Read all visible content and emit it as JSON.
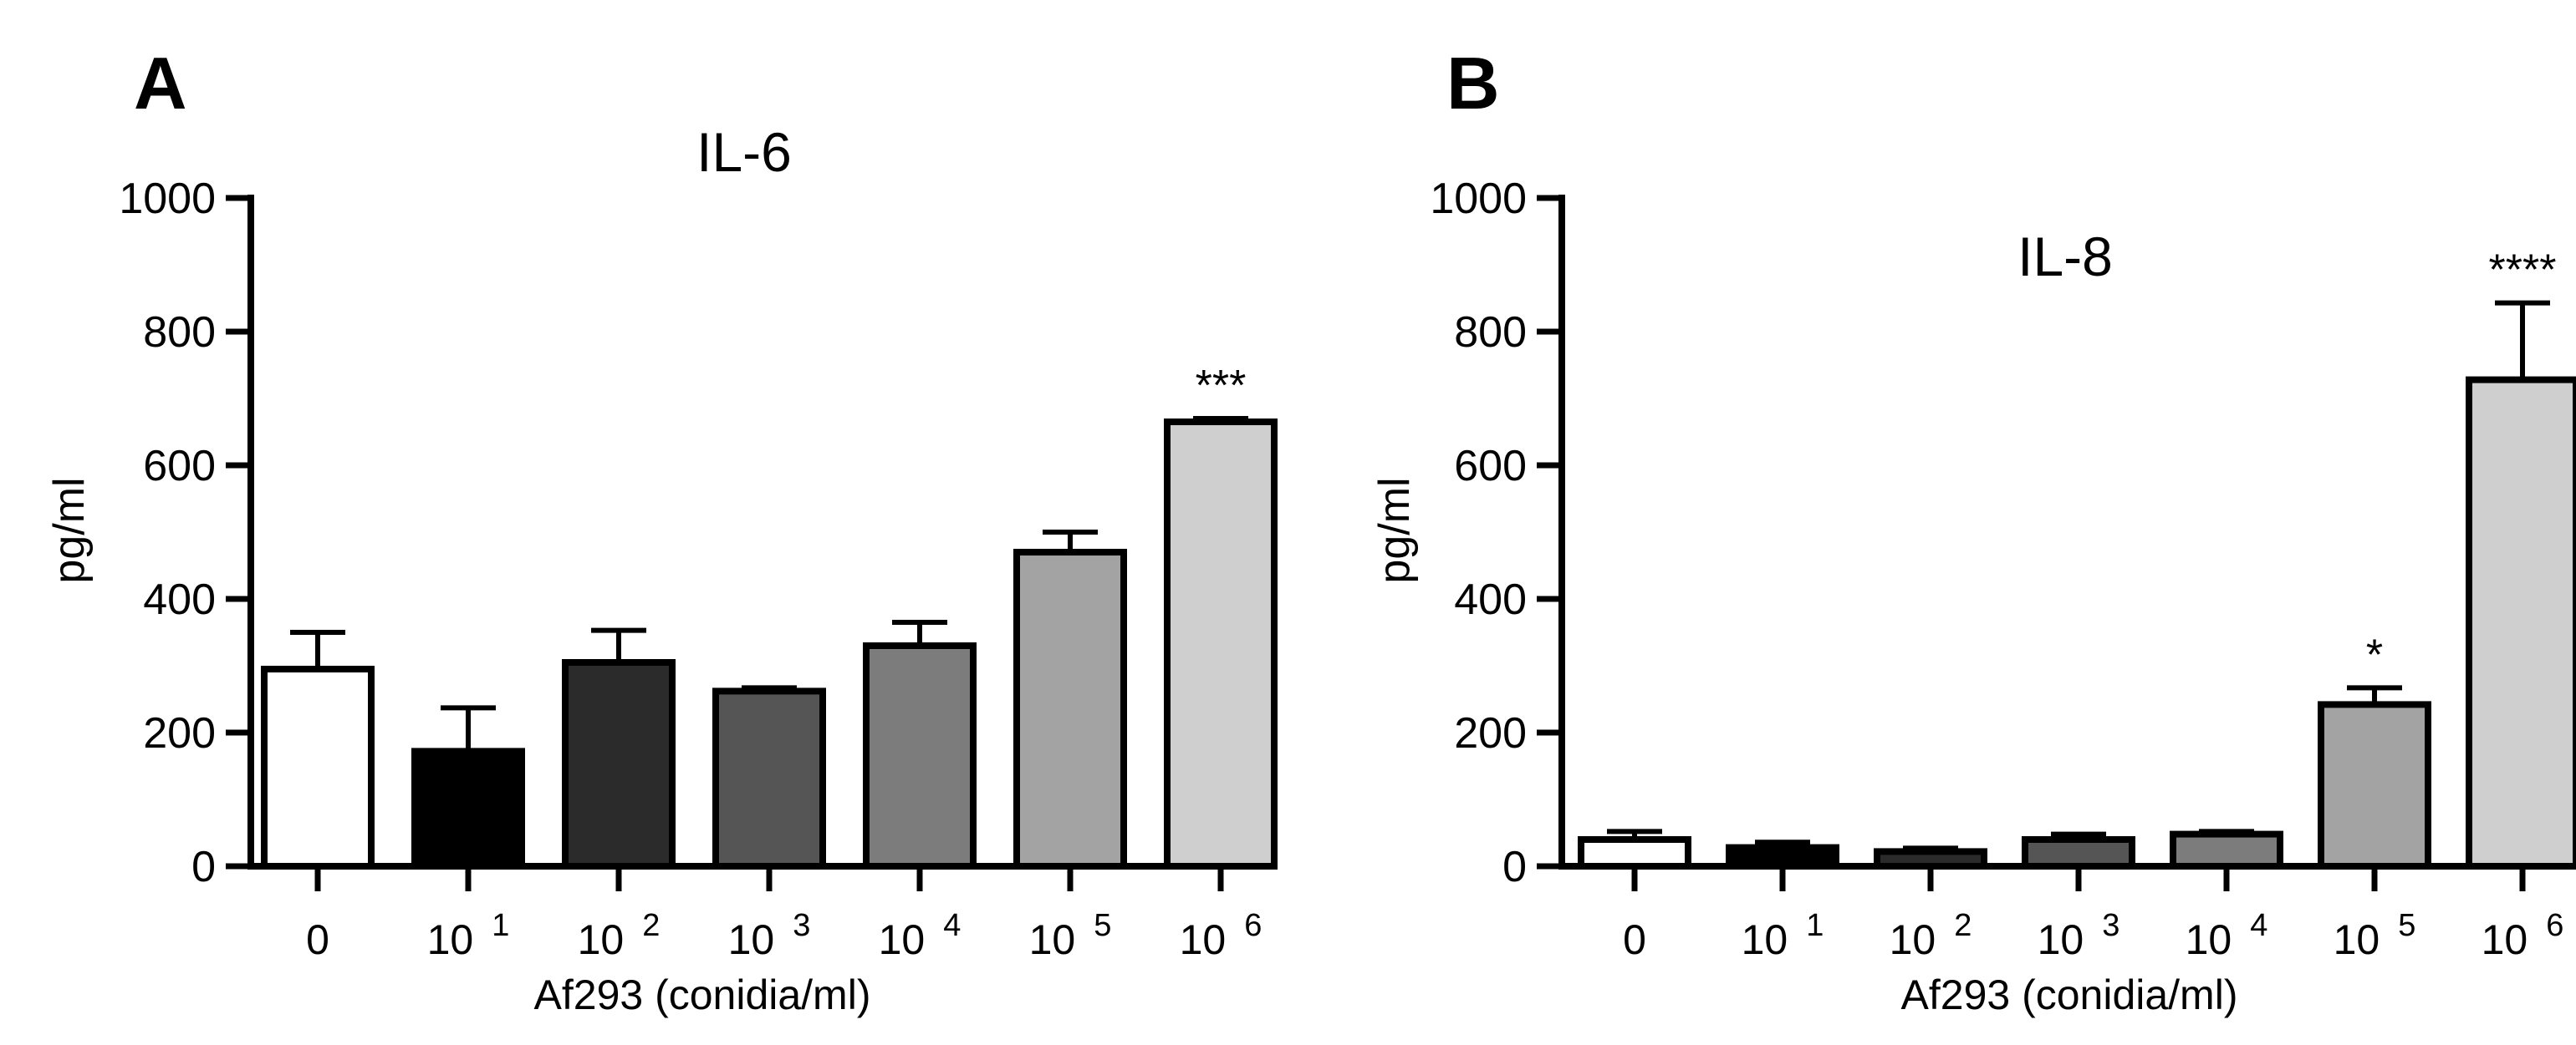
{
  "chart_data": [
    {
      "panel_label": "A",
      "type": "bar",
      "title": "IL-6",
      "ylabel": "pg/ml",
      "xlabel": "Af293 (conidia/ml)",
      "ylim": [
        0,
        1000
      ],
      "yticks": [
        "0",
        "200",
        "400",
        "600",
        "800",
        "1000"
      ],
      "categories": [
        {
          "base": "0",
          "exp": ""
        },
        {
          "base": "10",
          "exp": "1"
        },
        {
          "base": "10",
          "exp": "2"
        },
        {
          "base": "10",
          "exp": "3"
        },
        {
          "base": "10",
          "exp": "4"
        },
        {
          "base": "10",
          "exp": "5"
        },
        {
          "base": "10",
          "exp": "6"
        }
      ],
      "values": [
        295,
        172,
        305,
        262,
        330,
        470,
        665
      ],
      "errors": [
        55,
        65,
        48,
        5,
        35,
        30,
        5
      ],
      "annotations": [
        "",
        "",
        "",
        "",
        "",
        "",
        "***"
      ],
      "colors": [
        "#ffffff",
        "#000000",
        "#2b2b2b",
        "#555555",
        "#7c7c7c",
        "#a3a3a3",
        "#cfcfcf"
      ],
      "grid": false
    },
    {
      "panel_label": "B",
      "type": "bar",
      "title": "IL-8",
      "ylabel": "pg/ml",
      "xlabel": "Af293 (conidia/ml)",
      "ylim": [
        0,
        1000
      ],
      "yticks": [
        "0",
        "200",
        "400",
        "600",
        "800",
        "1000"
      ],
      "categories": [
        {
          "base": "0",
          "exp": ""
        },
        {
          "base": "10",
          "exp": "1"
        },
        {
          "base": "10",
          "exp": "2"
        },
        {
          "base": "10",
          "exp": "3"
        },
        {
          "base": "10",
          "exp": "4"
        },
        {
          "base": "10",
          "exp": "5"
        },
        {
          "base": "10",
          "exp": "6"
        }
      ],
      "values": [
        40,
        28,
        22,
        40,
        48,
        242,
        728
      ],
      "errors": [
        12,
        8,
        5,
        8,
        4,
        25,
        115
      ],
      "annotations": [
        "",
        "",
        "",
        "",
        "",
        "*",
        "****"
      ],
      "colors": [
        "#ffffff",
        "#000000",
        "#2b2b2b",
        "#555555",
        "#7c7c7c",
        "#a3a3a3",
        "#cfcfcf"
      ],
      "grid": false
    }
  ]
}
